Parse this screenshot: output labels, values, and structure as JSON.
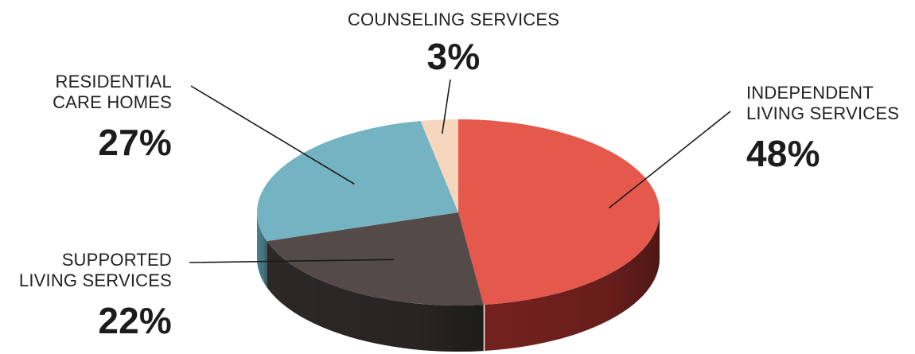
{
  "chart_data": {
    "type": "pie",
    "slices": [
      {
        "label_lines": [
          "INDEPENDENT",
          "LIVING SERVICES"
        ],
        "percent_label": "48%",
        "value": 48,
        "color": "#E5594D",
        "side_color": "#7A2320"
      },
      {
        "label_lines": [
          "SUPPORTED",
          "LIVING SERVICES"
        ],
        "percent_label": "22%",
        "value": 22,
        "color": "#544A48",
        "side_color": "#2E2A29"
      },
      {
        "label_lines": [
          "RESIDENTIAL",
          "CARE HOMES"
        ],
        "percent_label": "27%",
        "value": 27,
        "color": "#74B3C2",
        "side_color": "#4F8795"
      },
      {
        "label_lines": [
          "COUNSELING SERVICES"
        ],
        "percent_label": "3%",
        "value": 3,
        "color": "#F6D7BE",
        "side_color": "#C9A98F"
      }
    ]
  }
}
